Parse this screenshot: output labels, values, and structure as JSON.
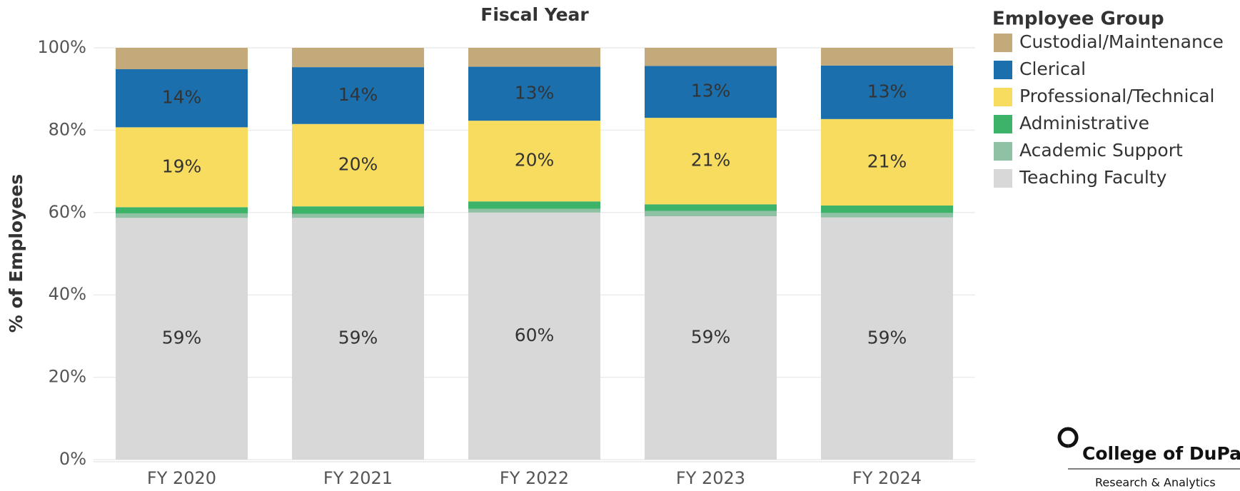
{
  "chart_data": {
    "type": "stacked_bar",
    "title": "Fiscal Year",
    "ylabel": "% of Employees",
    "legend_title": "Employee Group",
    "categories": [
      "FY 2020",
      "FY 2021",
      "FY 2022",
      "FY 2023",
      "FY 2024"
    ],
    "series": [
      {
        "name": "Teaching Faculty",
        "color": "#d8d8d8",
        "values": [
          58.7,
          58.7,
          60.0,
          59.1,
          58.8
        ],
        "value_labels": [
          "59%",
          "59%",
          "60%",
          "59%",
          "59%"
        ]
      },
      {
        "name": "Academic Support",
        "color": "#8fc1a5",
        "values": [
          1.1,
          1.0,
          0.9,
          1.3,
          1.1
        ]
      },
      {
        "name": "Administrative",
        "color": "#3db36a",
        "values": [
          1.5,
          1.8,
          1.8,
          1.6,
          1.8
        ]
      },
      {
        "name": "Professional/Technical",
        "color": "#f8dc5f",
        "values": [
          19.4,
          20.0,
          19.6,
          21.0,
          21.0
        ],
        "value_labels": [
          "19%",
          "20%",
          "20%",
          "21%",
          "21%"
        ]
      },
      {
        "name": "Clerical",
        "color": "#1b6fad",
        "values": [
          14.1,
          13.8,
          13.1,
          12.6,
          13.0
        ],
        "value_labels": [
          "14%",
          "14%",
          "13%",
          "13%",
          "13%"
        ]
      },
      {
        "name": "Custodial/Maintenance",
        "color": "#c4a97a",
        "values": [
          5.2,
          4.7,
          4.6,
          4.4,
          4.3
        ]
      }
    ],
    "ylim": [
      0,
      100
    ],
    "yticks": [
      {
        "value": 0,
        "label": "0%"
      },
      {
        "value": 20,
        "label": "20%"
      },
      {
        "value": 40,
        "label": "40%"
      },
      {
        "value": 60,
        "label": "60%"
      },
      {
        "value": 80,
        "label": "80%"
      },
      {
        "value": 100,
        "label": "100%"
      }
    ],
    "grid": true,
    "legend_position": "right"
  },
  "logo": {
    "name": "College of DuPa",
    "subtitle": "Research & Analytics"
  }
}
